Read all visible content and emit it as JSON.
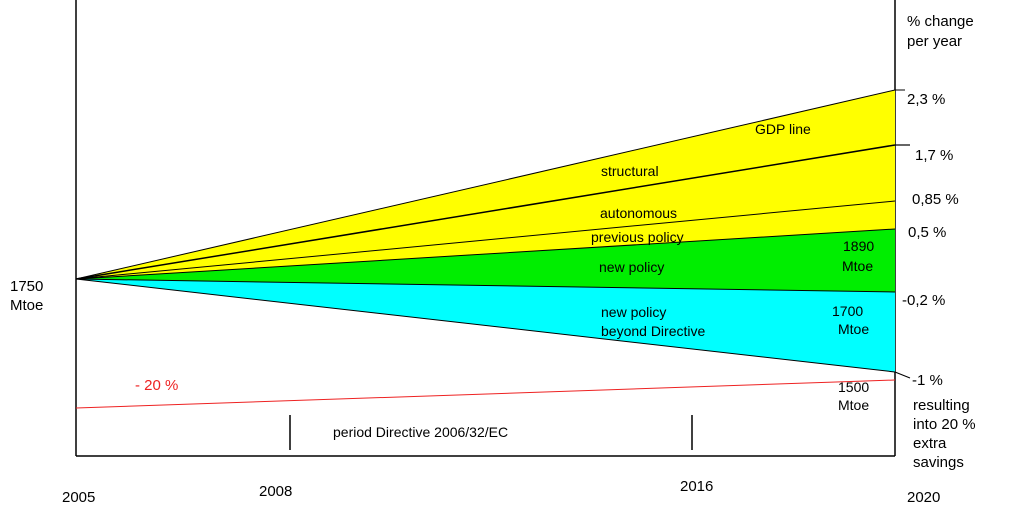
{
  "chart_data": {
    "type": "area",
    "x_start": 2005,
    "x_end": 2020,
    "x_ticks": [
      {
        "value": 2005,
        "label": "2005"
      },
      {
        "value": 2008,
        "label": "2008"
      },
      {
        "value": 2016,
        "label": "2016"
      },
      {
        "value": 2020,
        "label": "2020"
      }
    ],
    "start_value": {
      "value": 1750,
      "label": [
        "1750",
        "Mtoe"
      ]
    },
    "right_axis_title": [
      "% change",
      "per year"
    ],
    "rates": [
      {
        "name": "GDP line",
        "rate_label": "2,3 %",
        "rate": 2.3
      },
      {
        "name": "structural",
        "rate_label": "1,7 %",
        "rate": 1.7
      },
      {
        "name": "autonomous",
        "rate_label": "0,85 %",
        "rate": 0.85
      },
      {
        "name": "previous policy",
        "rate_label": "0,5 %",
        "rate": 0.5
      },
      {
        "name": "new policy",
        "rate_label": "-0,2 %",
        "rate": -0.2
      },
      {
        "name": "new policy beyond Directive",
        "rate_label": "-1 %",
        "rate": -1.0
      }
    ],
    "bands": [
      {
        "name": "GDP line",
        "color": "#ffff00"
      },
      {
        "name": "structural",
        "color": "#ffff00"
      },
      {
        "name": "autonomous",
        "color": "#ffff00"
      },
      {
        "name": "previous policy",
        "color": "#00ee00"
      },
      {
        "name": "new policy",
        "color": "#00ee00"
      },
      {
        "name": "new policy beyond Directive",
        "color": "#00ffff"
      }
    ],
    "band_labels": {
      "gdp": "GDP line",
      "structural": "structural",
      "autonomous": "autonomous",
      "previous_policy": "previous policy",
      "new_policy": "new policy",
      "beyond_1": "new policy",
      "beyond_2": "beyond Directive"
    },
    "end_values": [
      {
        "value": 1890,
        "label": [
          "1890",
          "Mtoe"
        ]
      },
      {
        "value": 1700,
        "label": [
          "1700",
          "Mtoe"
        ]
      },
      {
        "value": 1500,
        "label": [
          "1500",
          "Mtoe"
        ]
      }
    ],
    "reference_line": {
      "label": "- 20 %",
      "color": "#ee2222"
    },
    "resulting_note": [
      "resulting",
      "into 20 %",
      "extra",
      "savings"
    ],
    "directive_period": {
      "start": 2008,
      "end": 2016,
      "label": "period Directive 2006/32/EC"
    }
  }
}
